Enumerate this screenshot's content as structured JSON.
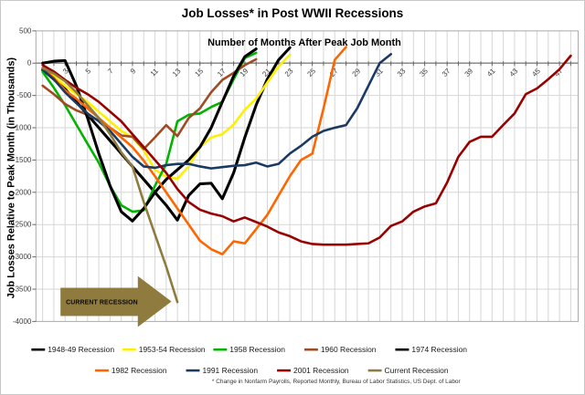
{
  "chart_data": {
    "type": "line",
    "title": "Job Losses* in Post WWII Recessions",
    "xlabel": "Number of Months After Peak Job Month",
    "ylabel": "Job Losses Relative to Peak Month (in Thousands)",
    "x_unit": "months after peak employment month (1-48)",
    "xlim": [
      0,
      48.5
    ],
    "ylim": [
      -4000,
      500
    ],
    "grid": true,
    "legend_position": "bottom",
    "x_ticks": [
      1,
      3,
      5,
      7,
      9,
      11,
      13,
      15,
      17,
      19,
      21,
      23,
      25,
      27,
      29,
      31,
      33,
      35,
      37,
      39,
      41,
      43,
      45,
      47
    ],
    "y_ticks": [
      500,
      0,
      -500,
      -1000,
      -1500,
      -2000,
      -2500,
      -3000,
      -3500,
      -4000
    ],
    "series": [
      {
        "name": "1948-49 Recession",
        "color": "#000000",
        "values": [
          -100,
          -250,
          -400,
          -600,
          -800,
          -1000,
          -1200,
          -1400,
          -1600,
          -1800,
          -2000,
          -2200,
          -2430,
          -2050,
          -1870,
          -1860,
          -2100,
          -1700,
          -1150,
          -650,
          -250,
          50,
          240
        ]
      },
      {
        "name": "1953-54 Recession",
        "color": "#FFF000",
        "values": [
          -80,
          -200,
          -350,
          -480,
          -600,
          -750,
          -900,
          -1050,
          -1150,
          -1350,
          -1650,
          -1760,
          -1790,
          -1600,
          -1300,
          -1150,
          -1100,
          -950,
          -720,
          -550,
          -300,
          -50,
          130
        ]
      },
      {
        "name": "1958 Recession",
        "color": "#00B400",
        "values": [
          -135,
          -380,
          -650,
          -950,
          -1250,
          -1540,
          -1900,
          -2200,
          -2300,
          -2280,
          -1900,
          -1560,
          -900,
          -800,
          -780,
          -680,
          -600,
          -250,
          80,
          160
        ]
      },
      {
        "name": "1960 Recession",
        "color": "#9E4B23",
        "values": [
          -350,
          -480,
          -630,
          -730,
          -800,
          -890,
          -1000,
          -1120,
          -1140,
          -1330,
          -1150,
          -960,
          -1130,
          -850,
          -700,
          -450,
          -260,
          -150,
          -30,
          60
        ]
      },
      {
        "name": "1974 Recession",
        "color": "#000000",
        "values": [
          0,
          30,
          40,
          -350,
          -850,
          -1400,
          -1900,
          -2300,
          -2445,
          -2250,
          -2000,
          -1800,
          -1650,
          -1500,
          -1300,
          -1000,
          -600,
          -200,
          100,
          220
        ]
      },
      {
        "name": "1982 Recession",
        "color": "#FF6600",
        "values": [
          -70,
          -230,
          -420,
          -550,
          -700,
          -850,
          -1000,
          -1150,
          -1300,
          -1510,
          -1750,
          -2000,
          -2250,
          -2500,
          -2750,
          -2880,
          -2960,
          -2760,
          -2790,
          -2570,
          -2350,
          -2050,
          -1750,
          -1500,
          -1400,
          -700,
          50,
          250
        ]
      },
      {
        "name": "1991 Recession",
        "color": "#1A3A64",
        "values": [
          -100,
          -250,
          -450,
          -620,
          -780,
          -900,
          -1050,
          -1250,
          -1450,
          -1600,
          -1620,
          -1580,
          -1560,
          -1560,
          -1600,
          -1630,
          -1610,
          -1590,
          -1580,
          -1540,
          -1600,
          -1560,
          -1400,
          -1280,
          -1140,
          -1050,
          -1000,
          -960,
          -700,
          -350,
          0,
          140
        ]
      },
      {
        "name": "2001 Recession",
        "color": "#990000",
        "values": [
          -30,
          -130,
          -260,
          -380,
          -480,
          -600,
          -750,
          -900,
          -1100,
          -1300,
          -1500,
          -1700,
          -1950,
          -2150,
          -2270,
          -2330,
          -2370,
          -2450,
          -2390,
          -2460,
          -2530,
          -2620,
          -2680,
          -2760,
          -2800,
          -2810,
          -2810,
          -2810,
          -2800,
          -2790,
          -2700,
          -2520,
          -2450,
          -2300,
          -2220,
          -2170,
          -1850,
          -1450,
          -1220,
          -1140,
          -1140,
          -955,
          -780,
          -480,
          -390,
          -250,
          -95,
          115
        ]
      },
      {
        "name": "Current Recession",
        "color": "#8F7B3D",
        "values": [
          -80,
          -160,
          -280,
          -450,
          -650,
          -850,
          -1100,
          -1380,
          -1600,
          -2150,
          -2650,
          -3150,
          -3700
        ]
      }
    ],
    "legend_rows": [
      [
        "1948-49 Recession",
        "1953-54 Recession",
        "1958 Recession",
        "1960 Recession",
        "1974 Recession"
      ],
      [
        "1982 Recession",
        "1991 Recession",
        "2001 Recession",
        "Current Recession"
      ]
    ]
  },
  "annotation": {
    "label": "CURRENT RECESSION",
    "color": "#8F7B3D"
  },
  "footnote": "* Change in Nonfarm Payrolls, Reported Monthly, Bureau of Labor Statistics, US Dept. of Labor"
}
